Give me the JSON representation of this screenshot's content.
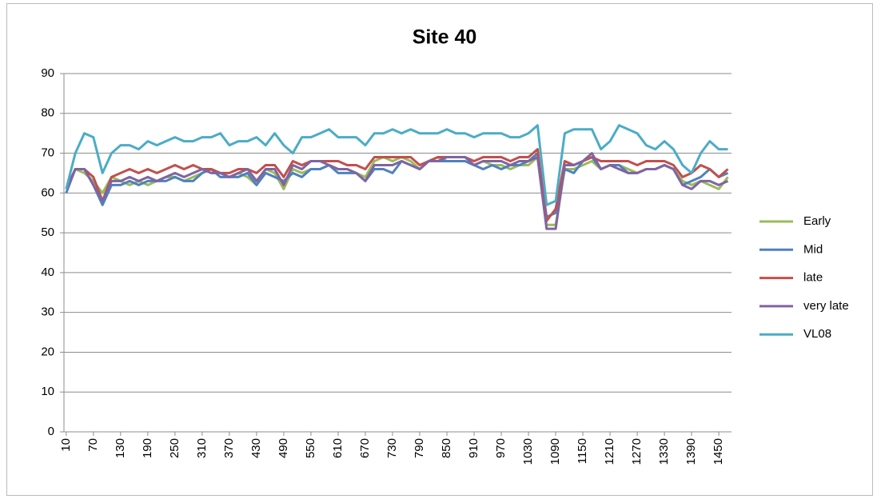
{
  "chart_data": {
    "type": "line",
    "title": "Site 40",
    "x": [
      10,
      30,
      50,
      70,
      90,
      110,
      130,
      150,
      170,
      190,
      210,
      230,
      250,
      270,
      290,
      310,
      330,
      350,
      370,
      390,
      410,
      430,
      450,
      470,
      490,
      510,
      530,
      550,
      570,
      590,
      610,
      630,
      650,
      670,
      690,
      710,
      730,
      750,
      770,
      790,
      810,
      830,
      850,
      870,
      890,
      910,
      930,
      950,
      970,
      990,
      1010,
      1030,
      1050,
      1070,
      1090,
      1110,
      1130,
      1150,
      1170,
      1190,
      1210,
      1230,
      1250,
      1270,
      1290,
      1310,
      1330,
      1350,
      1370,
      1390,
      1410,
      1430,
      1450,
      1470
    ],
    "series": [
      {
        "name": "Early",
        "color": "#9bbb59",
        "values": [
          61,
          66,
          65,
          63,
          60,
          64,
          63,
          62,
          63,
          62,
          63,
          64,
          64,
          63,
          64,
          65,
          66,
          65,
          64,
          65,
          64,
          62,
          66,
          65,
          61,
          66,
          65,
          66,
          66,
          67,
          66,
          66,
          65,
          64,
          68,
          69,
          68,
          69,
          68,
          66,
          68,
          69,
          68,
          68,
          68,
          67,
          68,
          67,
          67,
          66,
          67,
          67,
          69,
          52,
          52,
          66,
          66,
          67,
          68,
          66,
          67,
          67,
          66,
          65,
          66,
          66,
          67,
          66,
          63,
          62,
          63,
          62,
          61,
          64
        ]
      },
      {
        "name": "Mid",
        "color": "#4f81bd",
        "values": [
          60,
          66,
          66,
          62,
          57,
          62,
          62,
          63,
          62,
          63,
          63,
          63,
          64,
          63,
          63,
          65,
          66,
          64,
          64,
          64,
          65,
          62,
          65,
          64,
          63,
          65,
          64,
          66,
          66,
          67,
          65,
          65,
          65,
          63,
          66,
          66,
          65,
          68,
          67,
          66,
          68,
          68,
          68,
          68,
          68,
          67,
          66,
          67,
          66,
          67,
          67,
          68,
          70,
          54,
          55,
          66,
          65,
          68,
          69,
          66,
          67,
          67,
          65,
          65,
          66,
          66,
          67,
          66,
          62,
          63,
          64,
          66,
          64,
          65
        ]
      },
      {
        "name": "late",
        "color": "#c0504d",
        "values": [
          61,
          66,
          66,
          64,
          58,
          64,
          65,
          66,
          65,
          66,
          65,
          66,
          67,
          66,
          67,
          66,
          66,
          65,
          65,
          66,
          66,
          65,
          67,
          67,
          64,
          68,
          67,
          68,
          68,
          68,
          68,
          67,
          67,
          66,
          69,
          69,
          69,
          69,
          69,
          67,
          68,
          69,
          69,
          69,
          69,
          68,
          69,
          69,
          69,
          68,
          69,
          69,
          71,
          53,
          56,
          68,
          67,
          68,
          69,
          68,
          68,
          68,
          68,
          67,
          68,
          68,
          68,
          67,
          64,
          65,
          67,
          66,
          64,
          66
        ]
      },
      {
        "name": "very late",
        "color": "#8064a2",
        "values": [
          61,
          66,
          66,
          62,
          58,
          63,
          63,
          64,
          63,
          64,
          63,
          64,
          65,
          64,
          65,
          66,
          65,
          65,
          64,
          65,
          66,
          63,
          66,
          66,
          62,
          67,
          66,
          68,
          68,
          67,
          66,
          66,
          65,
          63,
          67,
          67,
          67,
          68,
          67,
          66,
          68,
          68,
          69,
          69,
          69,
          67,
          68,
          68,
          68,
          67,
          68,
          68,
          69,
          51,
          51,
          67,
          67,
          68,
          70,
          66,
          67,
          66,
          65,
          65,
          66,
          66,
          67,
          66,
          62,
          61,
          63,
          63,
          62,
          63
        ]
      },
      {
        "name": "VL08",
        "color": "#4bacc6",
        "values": [
          61,
          70,
          75,
          74,
          65,
          70,
          72,
          72,
          71,
          73,
          72,
          73,
          74,
          73,
          73,
          74,
          74,
          75,
          72,
          73,
          73,
          74,
          72,
          75,
          72,
          70,
          74,
          74,
          75,
          76,
          74,
          74,
          74,
          72,
          75,
          75,
          76,
          75,
          76,
          75,
          75,
          75,
          76,
          75,
          75,
          74,
          75,
          75,
          75,
          74,
          74,
          75,
          77,
          57,
          58,
          75,
          76,
          76,
          76,
          71,
          73,
          77,
          76,
          75,
          72,
          71,
          73,
          71,
          67,
          65,
          70,
          73,
          71,
          71
        ]
      }
    ],
    "xlim": [
      5,
      1478
    ],
    "xticks": [
      10,
      70,
      130,
      190,
      250,
      310,
      370,
      430,
      490,
      550,
      610,
      670,
      730,
      790,
      850,
      910,
      970,
      1030,
      1090,
      1150,
      1210,
      1270,
      1330,
      1390,
      1450
    ],
    "ylim": [
      0,
      90
    ],
    "yticks": [
      0,
      10,
      20,
      30,
      40,
      50,
      60,
      70,
      80,
      90
    ],
    "grid": true,
    "legend": "right"
  }
}
